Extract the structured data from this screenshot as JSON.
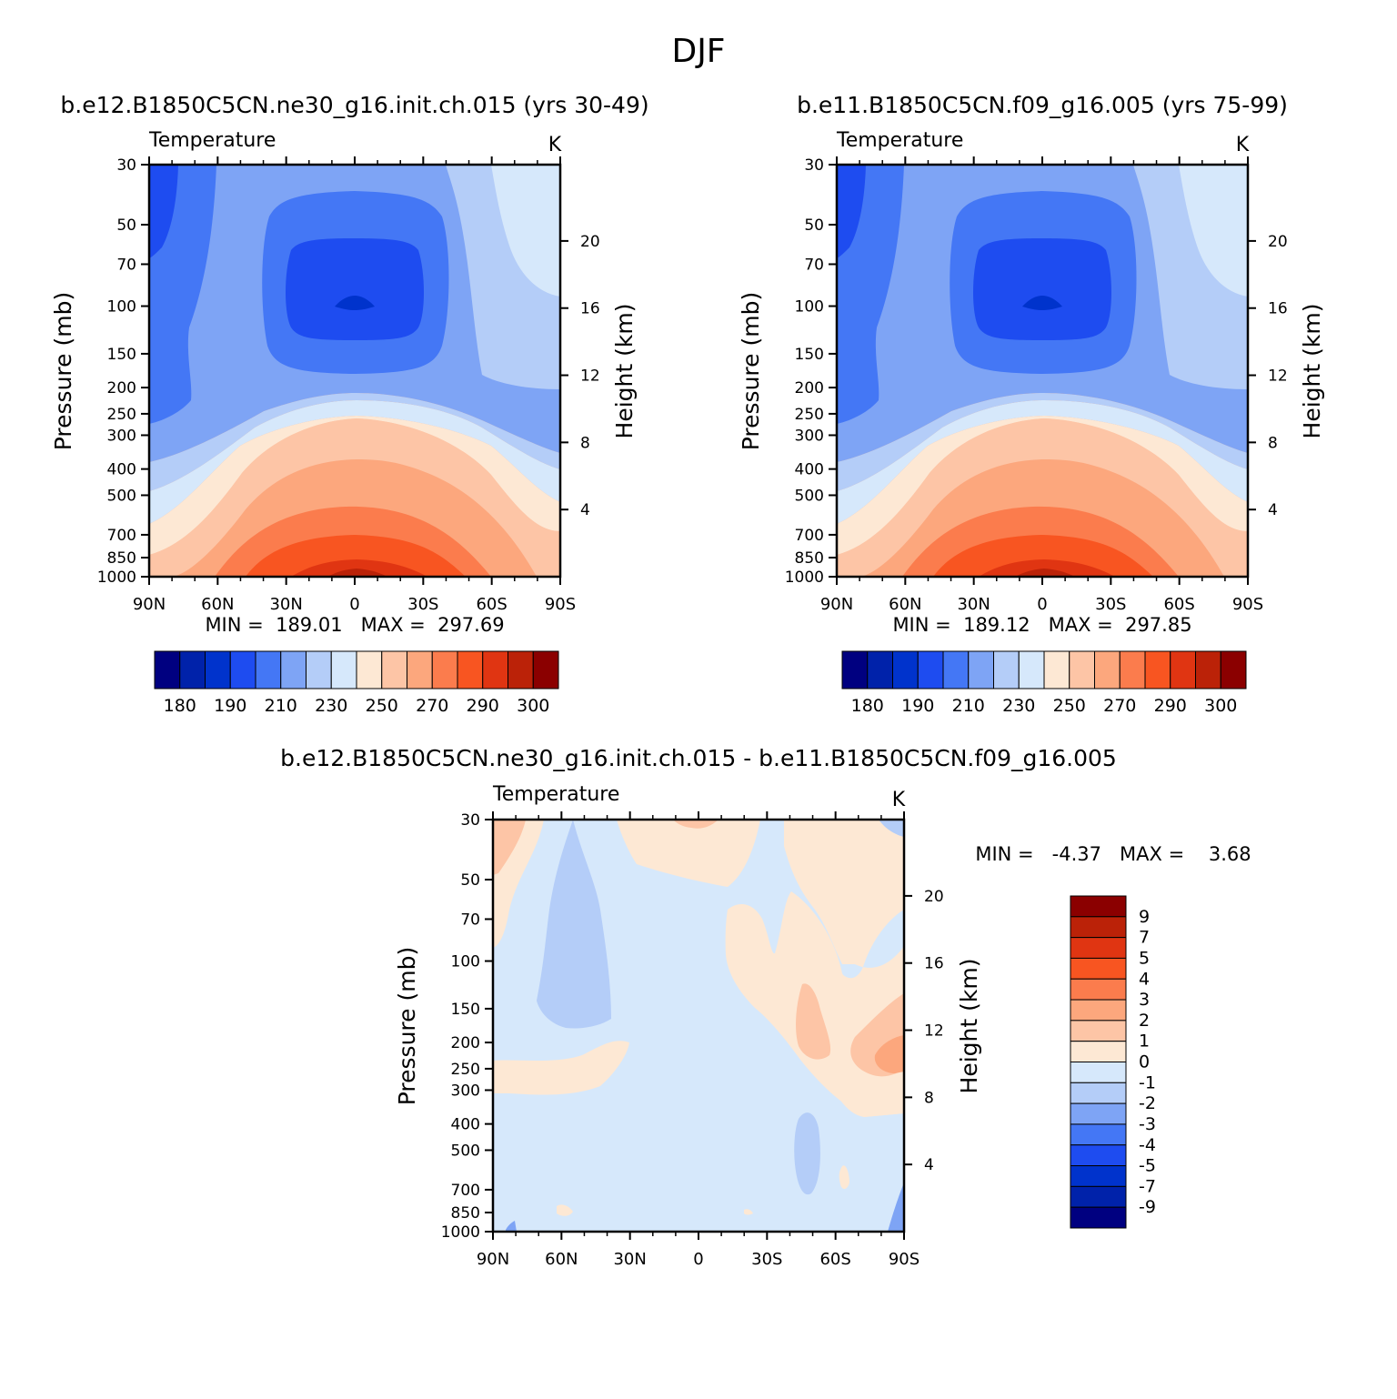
{
  "page_title": "DJF",
  "colors": {
    "temperature_scale": [
      "#000080",
      "#0022aa",
      "#0033cc",
      "#1e4cf0",
      "#4477f5",
      "#7ea4f5",
      "#b4cdf8",
      "#d6e8fb",
      "#fde8d4",
      "#fdc5a6",
      "#fca77d",
      "#fb7c4d",
      "#f85521",
      "#e03512",
      "#bb2208",
      "#8b0000"
    ],
    "difference_scale": [
      "#000080",
      "#0022aa",
      "#0033cc",
      "#1e4cf0",
      "#4477f5",
      "#7ea4f5",
      "#b4cdf8",
      "#d6e8fb",
      "#fde8d4",
      "#fdc5a6",
      "#fca77d",
      "#fb7c4d",
      "#f85521",
      "#e03512",
      "#bb2208",
      "#8b0000"
    ]
  },
  "chart_data": [
    {
      "type": "heatmap",
      "title": "b.e12.B1850C5CN.ne30_g16.init.ch.015 (yrs 30-49)",
      "field_label": "Temperature",
      "units": "K",
      "xlabel": "",
      "ylabel": "Pressure (mb)",
      "right_ylabel": "Height (km)",
      "x_ticks": [
        "90N",
        "60N",
        "30N",
        "0",
        "30S",
        "60S",
        "90S"
      ],
      "y_ticks": [
        "30",
        "50",
        "70",
        "100",
        "150",
        "200",
        "250",
        "300",
        "400",
        "500",
        "700",
        "850",
        "1000"
      ],
      "right_ticks": [
        "20",
        "16",
        "12",
        "8",
        "4"
      ],
      "ylim": [
        1000,
        30
      ],
      "y_scale": "log",
      "min_max": "MIN =  189.01   MAX =  297.69",
      "colorbar_labels": [
        "180",
        "190",
        "210",
        "230",
        "250",
        "270",
        "290",
        "300"
      ],
      "contour_levels": [
        180,
        185,
        190,
        200,
        210,
        220,
        230,
        240,
        250,
        260,
        270,
        280,
        290,
        295,
        300
      ],
      "sample_values": {
        "1000": {
          "90N": 252,
          "60N": 270,
          "30N": 287,
          "0": 298,
          "30S": 292,
          "60S": 279,
          "90S": 258
        },
        "700": {
          "90N": 248,
          "60N": 258,
          "30N": 276,
          "0": 283,
          "30S": 279,
          "60S": 267,
          "90S": 252
        },
        "500": {
          "90N": 236,
          "60N": 244,
          "30N": 260,
          "0": 267,
          "30S": 262,
          "60S": 250,
          "90S": 238
        },
        "300": {
          "90N": 220,
          "60N": 226,
          "30N": 236,
          "0": 243,
          "30S": 238,
          "60S": 226,
          "90S": 222
        },
        "200": {
          "90N": 214,
          "60N": 216,
          "30N": 216,
          "0": 212,
          "30S": 216,
          "60S": 222,
          "90S": 226
        },
        "100": {
          "90N": 210,
          "60N": 212,
          "30N": 200,
          "0": 189,
          "30S": 200,
          "60S": 222,
          "90S": 236
        },
        "50": {
          "90N": 198,
          "60N": 212,
          "30N": 205,
          "0": 200,
          "30S": 206,
          "60S": 228,
          "90S": 240
        },
        "30": {
          "90N": 192,
          "60N": 214,
          "30N": 214,
          "0": 215,
          "30S": 218,
          "60S": 232,
          "90S": 242
        }
      },
      "grid": false
    },
    {
      "type": "heatmap",
      "title": "b.e11.B1850C5CN.f09_g16.005 (yrs 75-99)",
      "field_label": "Temperature",
      "units": "K",
      "xlabel": "",
      "ylabel": "Pressure (mb)",
      "right_ylabel": "Height (km)",
      "x_ticks": [
        "90N",
        "60N",
        "30N",
        "0",
        "30S",
        "60S",
        "90S"
      ],
      "y_ticks": [
        "30",
        "50",
        "70",
        "100",
        "150",
        "200",
        "250",
        "300",
        "400",
        "500",
        "700",
        "850",
        "1000"
      ],
      "right_ticks": [
        "20",
        "16",
        "12",
        "8",
        "4"
      ],
      "ylim": [
        1000,
        30
      ],
      "y_scale": "log",
      "min_max": "MIN =  189.12   MAX =  297.85",
      "colorbar_labels": [
        "180",
        "190",
        "210",
        "230",
        "250",
        "270",
        "290",
        "300"
      ],
      "contour_levels": [
        180,
        185,
        190,
        200,
        210,
        220,
        230,
        240,
        250,
        260,
        270,
        280,
        290,
        295,
        300
      ],
      "sample_values": {
        "1000": {
          "90N": 252,
          "60N": 270,
          "30N": 287,
          "0": 298,
          "30S": 292,
          "60S": 279,
          "90S": 258
        },
        "700": {
          "90N": 248,
          "60N": 258,
          "30N": 276,
          "0": 283,
          "30S": 279,
          "60S": 267,
          "90S": 252
        },
        "500": {
          "90N": 236,
          "60N": 244,
          "30N": 260,
          "0": 267,
          "30S": 262,
          "60S": 250,
          "90S": 238
        },
        "300": {
          "90N": 220,
          "60N": 226,
          "30N": 236,
          "0": 243,
          "30S": 238,
          "60S": 226,
          "90S": 222
        },
        "200": {
          "90N": 214,
          "60N": 216,
          "30N": 216,
          "0": 212,
          "30S": 216,
          "60S": 222,
          "90S": 226
        },
        "100": {
          "90N": 210,
          "60N": 212,
          "30N": 200,
          "0": 189,
          "30S": 200,
          "60S": 222,
          "90S": 236
        },
        "50": {
          "90N": 198,
          "60N": 212,
          "30N": 205,
          "0": 200,
          "30S": 206,
          "60S": 228,
          "90S": 240
        },
        "30": {
          "90N": 192,
          "60N": 214,
          "30N": 214,
          "0": 215,
          "30S": 218,
          "60S": 232,
          "90S": 242
        }
      },
      "grid": false
    },
    {
      "type": "heatmap",
      "title": "b.e12.B1850C5CN.ne30_g16.init.ch.015 - b.e11.B1850C5CN.f09_g16.005",
      "field_label": "Temperature",
      "units": "K",
      "xlabel": "",
      "ylabel": "Pressure (mb)",
      "right_ylabel": "Height (km)",
      "x_ticks": [
        "90N",
        "60N",
        "30N",
        "0",
        "30S",
        "60S",
        "90S"
      ],
      "y_ticks": [
        "30",
        "50",
        "70",
        "100",
        "150",
        "200",
        "250",
        "300",
        "400",
        "500",
        "700",
        "850",
        "1000"
      ],
      "right_ticks": [
        "20",
        "16",
        "12",
        "8",
        "4"
      ],
      "ylim": [
        1000,
        30
      ],
      "y_scale": "log",
      "min_max": "MIN =   -4.37   MAX =    3.68",
      "colorbar_labels": [
        "9",
        "7",
        "5",
        "4",
        "3",
        "2",
        "1",
        "0",
        "-1",
        "-2",
        "-3",
        "-4",
        "-5",
        "-7",
        "-9"
      ],
      "background_range": [
        -1,
        0
      ],
      "sample_values": {
        "1000": {
          "90N": -0.5,
          "60N": 0.2,
          "30N": -0.3,
          "0": -0.3,
          "30S": -0.3,
          "60S": -0.3,
          "90S": -0.5
        },
        "300": {
          "90N": 0.4,
          "60N": 0.3,
          "30N": -0.4,
          "0": -0.4,
          "30S": -0.5,
          "60S": 0.3,
          "90S": 0.6
        },
        "200": {
          "90N": 0.3,
          "60N": 0.6,
          "30N": -0.3,
          "0": -0.4,
          "30S": 0.2,
          "60S": 1.2,
          "90S": 2.4
        },
        "100": {
          "90N": -0.3,
          "60N": -1.4,
          "30N": -0.4,
          "0": -0.3,
          "30S": 0.4,
          "60S": 0.6,
          "90S": 0.7
        },
        "30": {
          "90N": 0.6,
          "60N": -1.2,
          "30N": 0.5,
          "0": 0.3,
          "30S": -0.2,
          "60S": 0.5,
          "90S": -1.2
        }
      },
      "grid": false
    }
  ]
}
